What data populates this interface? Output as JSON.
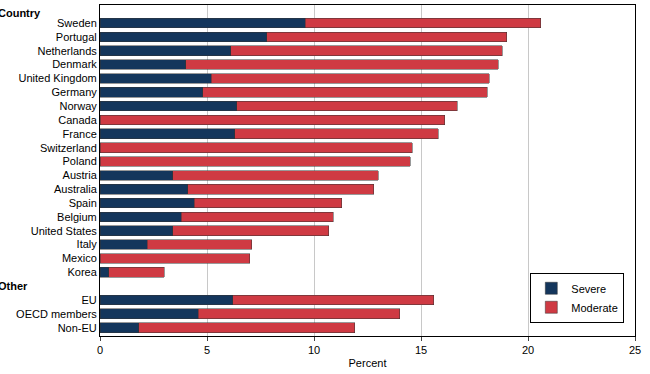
{
  "chart_data": {
    "type": "bar",
    "orientation": "horizontal",
    "stacked": true,
    "grid": true,
    "legend": "bottom right",
    "xlabel": "Percent",
    "annotations": [
      "Country",
      "Other"
    ],
    "categories": [
      "Sweden",
      "Portugal",
      "Netherlands",
      "Denmark",
      "United Kingdom",
      "Germany",
      "Norway",
      "Canada",
      "France",
      "Switzerland",
      "Poland",
      "Austria",
      "Australia",
      "Spain",
      "Belgium",
      "United States",
      "Italy",
      "Mexico",
      "Korea",
      null,
      "EU",
      "OECD members",
      "Non-EU"
    ],
    "series": [
      {
        "name": "Severe",
        "color": "#14365c",
        "values": [
          9.6,
          7.8,
          6.1,
          4.0,
          5.2,
          4.8,
          6.4,
          null,
          6.3,
          null,
          null,
          3.4,
          4.1,
          4.4,
          3.8,
          3.4,
          2.2,
          null,
          0.4,
          null,
          6.2,
          4.6,
          1.8
        ]
      },
      {
        "name": "Moderate",
        "color": "#cf3a43",
        "values": [
          11.0,
          11.2,
          12.7,
          14.6,
          13.0,
          13.3,
          10.3,
          16.1,
          9.5,
          14.6,
          14.5,
          9.6,
          8.7,
          6.9,
          7.1,
          7.3,
          4.9,
          7.0,
          2.6,
          null,
          9.4,
          9.4,
          10.1
        ]
      }
    ],
    "xlim": [
      0,
      25
    ],
    "xticks": [
      0,
      5,
      10,
      15,
      20,
      25
    ]
  }
}
